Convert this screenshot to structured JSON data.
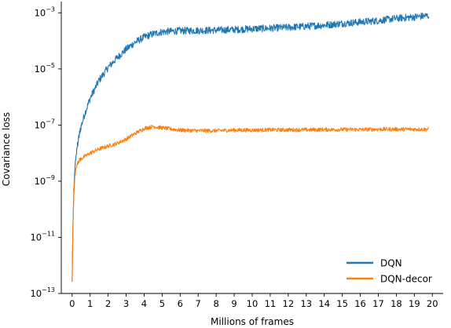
{
  "chart_data": {
    "type": "line",
    "title": "",
    "xlabel": "Millions of frames",
    "ylabel": "Covariance loss",
    "xlim": [
      -0.6,
      20.6
    ],
    "xticks": [
      0,
      1,
      2,
      3,
      4,
      5,
      6,
      7,
      8,
      9,
      10,
      11,
      12,
      13,
      14,
      15,
      16,
      17,
      18,
      19,
      20
    ],
    "yscale": "log",
    "ylim_exponent": [
      -13,
      -2.6
    ],
    "yticks": [
      {
        "base": "10",
        "exp": "−3",
        "value_exp": -3
      },
      {
        "base": "10",
        "exp": "−5",
        "value_exp": -5
      },
      {
        "base": "10",
        "exp": "−7",
        "value_exp": -7
      },
      {
        "base": "10",
        "exp": "−9",
        "value_exp": -9
      },
      {
        "base": "10",
        "exp": "−11",
        "value_exp": -11
      },
      {
        "base": "10",
        "exp": "−13",
        "value_exp": -13
      }
    ],
    "grid": false,
    "legend_position": "bottom-right",
    "series": [
      {
        "name": "DQN",
        "color": "#1f77b4",
        "x": [
          0,
          0.05,
          0.1,
          0.15,
          0.2,
          0.3,
          0.4,
          0.5,
          0.7,
          1.0,
          1.5,
          2.0,
          2.5,
          3.0,
          3.5,
          4.0,
          4.5,
          5.0,
          6.0,
          7.0,
          8.0,
          9.0,
          10.0,
          11.0,
          12.0,
          13.0,
          14.0,
          15.0,
          16.0,
          17.0,
          18.0,
          19.0,
          19.8
        ],
        "log10_y": [
          -12.6,
          -10.5,
          -9.3,
          -8.6,
          -8.2,
          -7.7,
          -7.35,
          -7.05,
          -6.6,
          -6.05,
          -5.4,
          -4.95,
          -4.6,
          -4.3,
          -4.05,
          -3.87,
          -3.75,
          -3.68,
          -3.64,
          -3.63,
          -3.62,
          -3.6,
          -3.57,
          -3.55,
          -3.52,
          -3.48,
          -3.44,
          -3.38,
          -3.33,
          -3.28,
          -3.2,
          -3.15,
          -3.1
        ],
        "noise": 0.13
      },
      {
        "name": "DQN-decor",
        "color": "#ff7f0e",
        "x": [
          0,
          0.05,
          0.1,
          0.15,
          0.2,
          0.3,
          0.4,
          0.5,
          0.7,
          1.0,
          1.5,
          2.0,
          2.5,
          3.0,
          3.5,
          4.0,
          4.5,
          5.0,
          6.0,
          7.0,
          8.0,
          9.0,
          10.0,
          11.0,
          12.0,
          13.0,
          14.0,
          15.0,
          16.0,
          17.0,
          18.0,
          19.0,
          19.8
        ],
        "log10_y": [
          -12.6,
          -10.6,
          -9.5,
          -8.9,
          -8.6,
          -8.35,
          -8.25,
          -8.2,
          -8.12,
          -8.0,
          -7.85,
          -7.75,
          -7.65,
          -7.5,
          -7.3,
          -7.12,
          -7.05,
          -7.1,
          -7.18,
          -7.2,
          -7.2,
          -7.18,
          -7.18,
          -7.17,
          -7.17,
          -7.17,
          -7.16,
          -7.16,
          -7.16,
          -7.15,
          -7.15,
          -7.15,
          -7.15
        ],
        "noise": 0.07
      }
    ]
  }
}
